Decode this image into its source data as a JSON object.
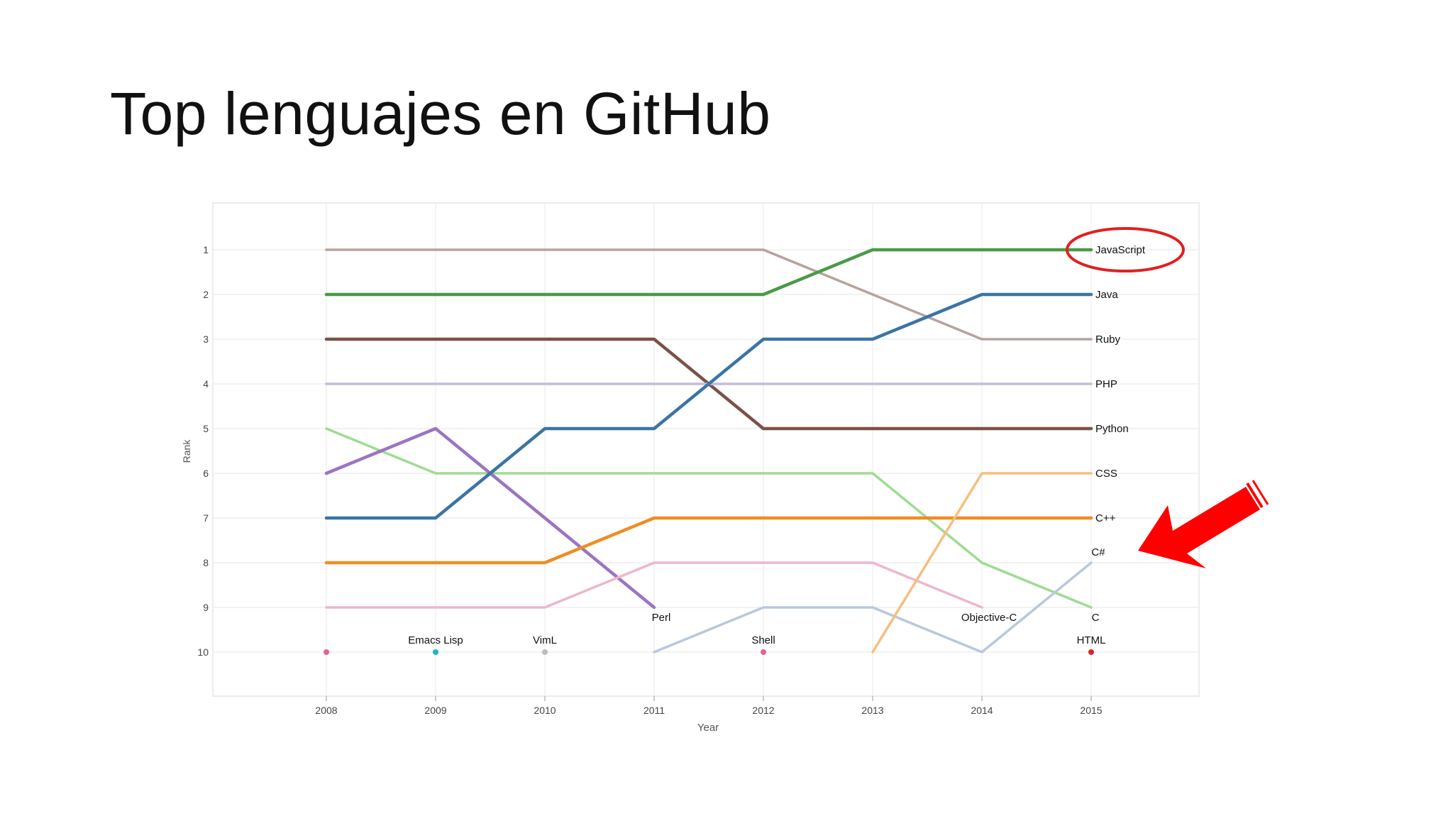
{
  "slide": {
    "title": "Top lenguajes en GitHub"
  },
  "chart_data": {
    "type": "line",
    "title": "",
    "xlabel": "Year",
    "ylabel": "Rank",
    "x": [
      2008,
      2009,
      2010,
      2011,
      2012,
      2013,
      2014,
      2015
    ],
    "xlim": [
      2007,
      2016
    ],
    "ylim": [
      11,
      0
    ],
    "y_ticks": [
      1,
      2,
      3,
      4,
      5,
      6,
      7,
      8,
      9,
      10
    ],
    "grid": true,
    "series": [
      {
        "name": "Ruby",
        "color": "#b7a39c",
        "values": [
          1,
          1,
          1,
          1,
          1,
          2,
          3,
          3
        ]
      },
      {
        "name": "JavaScript",
        "color": "#4a9a47",
        "values": [
          2,
          2,
          2,
          2,
          2,
          1,
          1,
          1
        ]
      },
      {
        "name": "Python",
        "color": "#7a5248",
        "values": [
          3,
          3,
          3,
          3,
          5,
          5,
          5,
          5
        ]
      },
      {
        "name": "PHP",
        "color": "#c6bcd8",
        "values": [
          4,
          4,
          4,
          4,
          4,
          4,
          4,
          4
        ]
      },
      {
        "name": "C",
        "color": "#9fdb93",
        "values": [
          5,
          6,
          6,
          6,
          6,
          6,
          8,
          9
        ]
      },
      {
        "name": "Perl",
        "color": "#9b74c2",
        "values": [
          6,
          5,
          7,
          9,
          null,
          null,
          null,
          null
        ]
      },
      {
        "name": "Java",
        "color": "#3a74a6",
        "values": [
          7,
          7,
          5,
          5,
          3,
          3,
          2,
          2
        ]
      },
      {
        "name": "C++",
        "color": "#ef8d22",
        "values": [
          8,
          8,
          8,
          7,
          7,
          7,
          7,
          7
        ]
      },
      {
        "name": "Objective-C",
        "color": "#efb5cf",
        "values": [
          9,
          9,
          9,
          8,
          8,
          8,
          9,
          null
        ]
      },
      {
        "name": "C#",
        "color": "#b8c8dc",
        "values": [
          null,
          null,
          null,
          10,
          9,
          9,
          10,
          8
        ]
      },
      {
        "name": "CSS",
        "color": "#f6be7e",
        "values": [
          null,
          null,
          null,
          null,
          null,
          10,
          6,
          6
        ]
      }
    ],
    "points": [
      {
        "name": "",
        "x": 2008,
        "y": 10,
        "color": "#e4638a"
      },
      {
        "name": "Emacs Lisp",
        "x": 2009,
        "y": 10,
        "color": "#1fb3c8"
      },
      {
        "name": "VimL",
        "x": 2010,
        "y": 10,
        "color": "#bdbdbd"
      },
      {
        "name": "Shell",
        "x": 2012,
        "y": 10,
        "color": "#e4638a"
      },
      {
        "name": "HTML",
        "x": 2015,
        "y": 10,
        "color": "#d62728"
      }
    ],
    "annotations": {
      "highlight_series": "JavaScript",
      "highlight_color": "#e02020",
      "arrow_target": "C#",
      "arrow_color": "#ff0000"
    }
  }
}
